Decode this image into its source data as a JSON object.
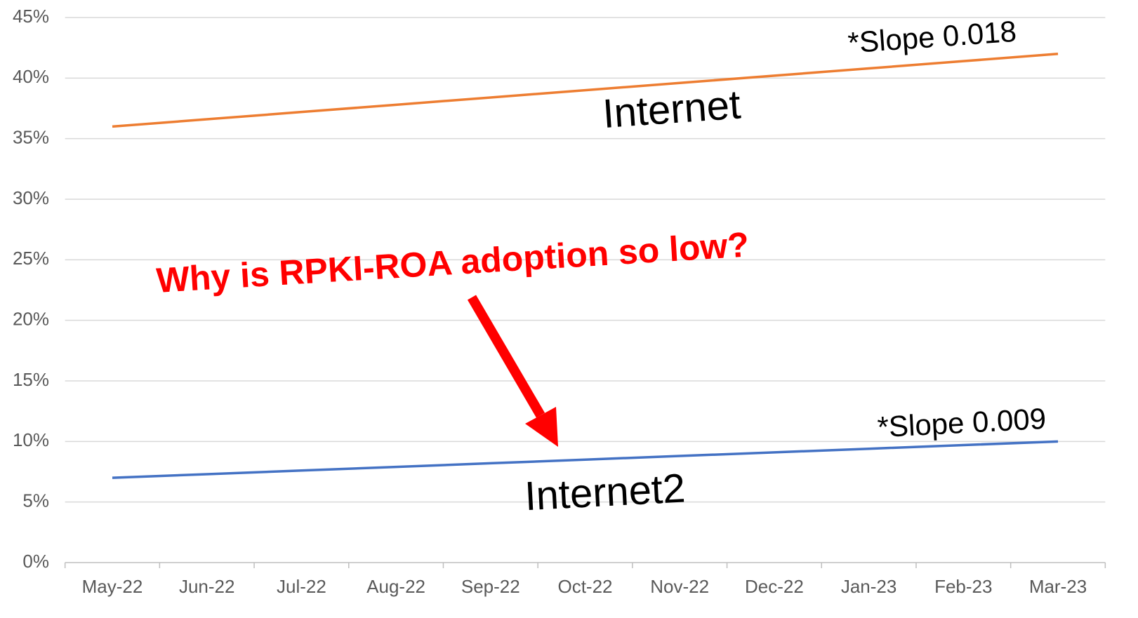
{
  "chart_data": {
    "type": "line",
    "categories": [
      "May-22",
      "Jun-22",
      "Jul-22",
      "Aug-22",
      "Sep-22",
      "Oct-22",
      "Nov-22",
      "Dec-22",
      "Jan-23",
      "Feb-23",
      "Mar-23"
    ],
    "series": [
      {
        "name": "Internet",
        "color": "#ed7d31",
        "values": [
          36,
          36.6,
          37.2,
          37.8,
          38.4,
          39,
          39.6,
          40.2,
          40.8,
          41.4,
          42
        ]
      },
      {
        "name": "Internet2",
        "color": "#4472c4",
        "values": [
          7,
          7.3,
          7.6,
          7.9,
          8.2,
          8.5,
          8.8,
          9.1,
          9.4,
          9.7,
          10
        ]
      }
    ],
    "ylim": [
      0,
      45
    ],
    "yticks": [
      {
        "value": 0,
        "label": "0%"
      },
      {
        "value": 5,
        "label": "5%"
      },
      {
        "value": 10,
        "label": "10%"
      },
      {
        "value": 15,
        "label": "15%"
      },
      {
        "value": 20,
        "label": "20%"
      },
      {
        "value": 25,
        "label": "25%"
      },
      {
        "value": 30,
        "label": "30%"
      },
      {
        "value": 35,
        "label": "35%"
      },
      {
        "value": 40,
        "label": "40%"
      },
      {
        "value": 45,
        "label": "45%"
      }
    ],
    "grid": true,
    "annotations": [
      {
        "text": "*Slope 0.018"
      },
      {
        "text": "*Slope 0.009"
      },
      {
        "text": "Why is RPKI-ROA adoption so low?"
      }
    ]
  }
}
